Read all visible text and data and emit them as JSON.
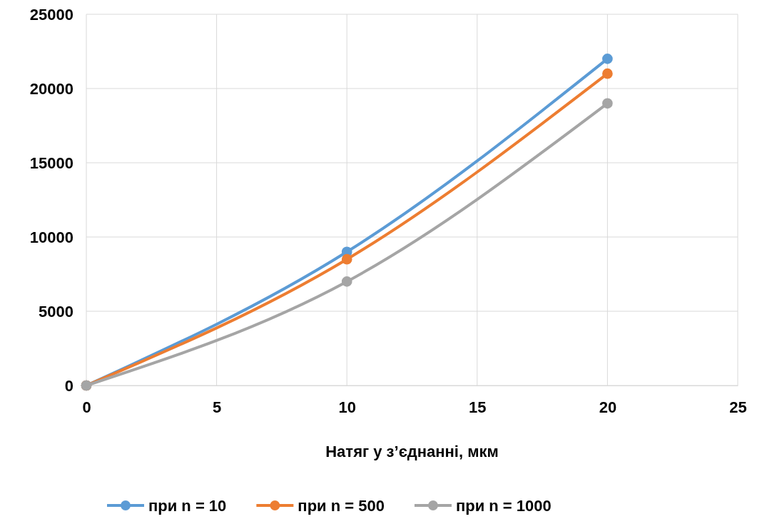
{
  "chart_data": {
    "type": "line",
    "xlabel": "Натяг у з’єднанні, мкм",
    "x": [
      0,
      10,
      20
    ],
    "series": [
      {
        "name": "при n = 10",
        "color": "#5b9bd5",
        "values": [
          0,
          9000,
          22000
        ]
      },
      {
        "name": "при n = 500",
        "color": "#ed7d31",
        "values": [
          0,
          8500,
          21000
        ]
      },
      {
        "name": "при n = 1000",
        "color": "#a5a5a5",
        "values": [
          0,
          7000,
          19000
        ]
      }
    ],
    "xlim": [
      0,
      25
    ],
    "xticks": [
      0,
      5,
      10,
      15,
      20,
      25
    ],
    "ylim": [
      0,
      25000
    ],
    "yticks": [
      0,
      5000,
      10000,
      15000,
      20000,
      25000
    ],
    "grid": true,
    "legend": "bottom",
    "marker": "circle",
    "line_style": "solid"
  }
}
